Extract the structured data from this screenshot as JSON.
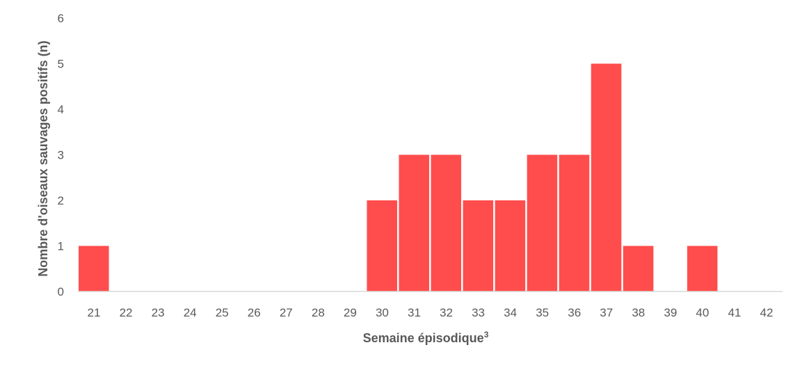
{
  "chart_data": {
    "type": "bar",
    "categories": [
      "21",
      "22",
      "23",
      "24",
      "25",
      "26",
      "27",
      "28",
      "29",
      "30",
      "31",
      "32",
      "33",
      "34",
      "35",
      "36",
      "37",
      "38",
      "39",
      "40",
      "41",
      "42"
    ],
    "values": [
      1,
      0,
      0,
      0,
      0,
      0,
      0,
      0,
      0,
      2,
      3,
      3,
      2,
      2,
      3,
      3,
      5,
      1,
      0,
      1,
      0,
      0
    ],
    "xlabel": "Semaine épisodique",
    "xlabel_superscript": "3",
    "ylabel": "Nombre d'oiseaux sauvages positifs (n)",
    "ylim": [
      0,
      6
    ],
    "yticks": [
      "0",
      "1",
      "2",
      "3",
      "4",
      "5",
      "6"
    ],
    "grid": false,
    "legend": "none",
    "bar_color": "#ff4d4d",
    "axis_color": "#d9d9d9"
  }
}
